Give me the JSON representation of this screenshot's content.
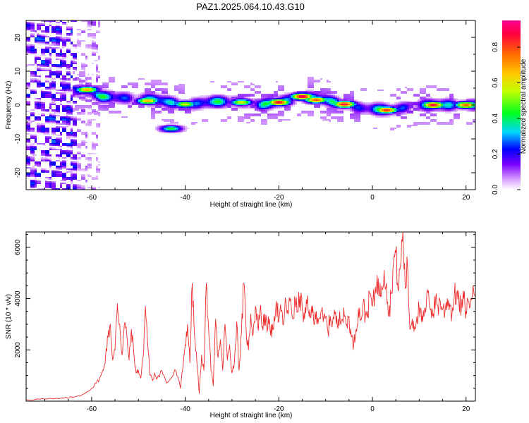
{
  "title": "PAZ1.2025.064.10.43.G10",
  "chart_data": [
    {
      "type": "heatmap",
      "xlabel": "Height of straight line (km)",
      "ylabel": "Frequency (Hz)",
      "xlim": [
        -74,
        22
      ],
      "ylim": [
        -25,
        25
      ],
      "x_ticks": [
        -60,
        -40,
        -20,
        0,
        20
      ],
      "y_ticks": [
        -20,
        -10,
        0,
        10,
        20
      ],
      "colorbar": {
        "label": "Normalized spectral amplitude",
        "range": [
          0,
          0.95
        ],
        "ticks": [
          0.0,
          0.2,
          0.4,
          0.6,
          0.8
        ]
      },
      "ridge_center_hz": [
        [
          -72,
          3
        ],
        [
          -66,
          3.5
        ],
        [
          -62,
          4.5
        ],
        [
          -58,
          2.5
        ],
        [
          -52,
          2
        ],
        [
          -46,
          1.5
        ],
        [
          -40,
          0
        ],
        [
          -34,
          1
        ],
        [
          -28,
          1
        ],
        [
          -24,
          0
        ],
        [
          -20,
          1
        ],
        [
          -14,
          2.5
        ],
        [
          -10,
          1.5
        ],
        [
          -6,
          0
        ],
        [
          -2,
          -1
        ],
        [
          4,
          -1.5
        ],
        [
          10,
          0
        ],
        [
          16,
          0
        ],
        [
          22,
          0
        ]
      ],
      "ridge_peaks": [
        [
          -61,
          4.5,
          0.7
        ],
        [
          -48,
          1.2,
          0.7
        ],
        [
          -40,
          0.2,
          0.6
        ],
        [
          -28,
          0.8,
          0.6
        ],
        [
          -20,
          0.8,
          0.9
        ],
        [
          -15,
          2.5,
          0.95
        ],
        [
          -12,
          1.5,
          0.8
        ],
        [
          -6,
          0.2,
          0.9
        ],
        [
          3,
          -1.5,
          0.85
        ],
        [
          13,
          0.0,
          0.9
        ],
        [
          20,
          0.0,
          0.8
        ]
      ],
      "side_blob": [
        -43,
        -7,
        0.45
      ]
    },
    {
      "type": "line",
      "xlabel": "Height of straight line (km)",
      "ylabel": "SNR (10 * v/v)",
      "xlim": [
        -74,
        22
      ],
      "ylim": [
        0,
        6600
      ],
      "x_ticks": [
        -60,
        -40,
        -20,
        0,
        20
      ],
      "y_ticks": [
        2000,
        4000,
        6000
      ],
      "color": "#ee2c2c",
      "series": [
        {
          "values": [
            [
              -74,
              60
            ],
            [
              -72,
              70
            ],
            [
              -70,
              80
            ],
            [
              -68,
              90
            ],
            [
              -66,
              110
            ],
            [
              -64,
              150
            ],
            [
              -62,
              250
            ],
            [
              -60,
              500
            ],
            [
              -59,
              700
            ],
            [
              -58,
              1000
            ],
            [
              -57.5,
              1200
            ],
            [
              -57,
              1800
            ],
            [
              -56.5,
              2500
            ],
            [
              -56,
              3000
            ],
            [
              -55.5,
              1600
            ],
            [
              -55,
              2000
            ],
            [
              -54.5,
              3800
            ],
            [
              -54,
              3000
            ],
            [
              -53.5,
              1800
            ],
            [
              -53,
              3000
            ],
            [
              -52.5,
              2600
            ],
            [
              -52,
              1600
            ],
            [
              -51.5,
              2800
            ],
            [
              -51,
              1900
            ],
            [
              -50.5,
              1100
            ],
            [
              -50,
              1200
            ],
            [
              -49.5,
              900
            ],
            [
              -49,
              1700
            ],
            [
              -48.5,
              3700
            ],
            [
              -48,
              2200
            ],
            [
              -47.5,
              1000
            ],
            [
              -47,
              800
            ],
            [
              -46.5,
              1100
            ],
            [
              -46,
              900
            ],
            [
              -45,
              1200
            ],
            [
              -44,
              700
            ],
            [
              -43,
              900
            ],
            [
              -42,
              1200
            ],
            [
              -41,
              500
            ],
            [
              -40,
              2200
            ],
            [
              -39.5,
              3000
            ],
            [
              -39,
              1500
            ],
            [
              -38.5,
              4600
            ],
            [
              -38,
              2500
            ],
            [
              -37.5,
              1500
            ],
            [
              -37,
              300
            ],
            [
              -36.5,
              1800
            ],
            [
              -36,
              1200
            ],
            [
              -35.5,
              4600
            ],
            [
              -35,
              2800
            ],
            [
              -34.5,
              1200
            ],
            [
              -34,
              600
            ],
            [
              -33.5,
              3200
            ],
            [
              -33,
              1700
            ],
            [
              -32.5,
              2400
            ],
            [
              -32,
              1200
            ],
            [
              -31.5,
              3000
            ],
            [
              -31,
              1600
            ],
            [
              -30.5,
              2200
            ],
            [
              -30,
              1100
            ],
            [
              -29.5,
              1500
            ],
            [
              -29,
              3100
            ],
            [
              -28.5,
              1200
            ],
            [
              -28,
              2600
            ],
            [
              -27.5,
              4600
            ],
            [
              -27,
              2800
            ],
            [
              -26.5,
              2000
            ],
            [
              -26,
              3400
            ],
            [
              -25.5,
              2600
            ],
            [
              -25,
              3700
            ],
            [
              -24.5,
              2900
            ],
            [
              -24,
              3600
            ],
            [
              -23.5,
              2900
            ],
            [
              -23,
              3400
            ],
            [
              -22.5,
              2700
            ],
            [
              -22,
              3200
            ],
            [
              -21.5,
              2500
            ],
            [
              -21,
              3300
            ],
            [
              -20.5,
              3900
            ],
            [
              -20,
              3100
            ],
            [
              -19.5,
              3500
            ],
            [
              -19,
              3000
            ],
            [
              -18.5,
              3900
            ],
            [
              -18,
              3400
            ],
            [
              -17.5,
              4000
            ],
            [
              -17,
              3200
            ],
            [
              -16.5,
              3900
            ],
            [
              -16,
              3500
            ],
            [
              -15.5,
              4100
            ],
            [
              -15,
              3600
            ],
            [
              -14.5,
              3200
            ],
            [
              -14,
              3800
            ],
            [
              -13.5,
              3300
            ],
            [
              -13,
              3700
            ],
            [
              -12.5,
              3000
            ],
            [
              -12,
              3500
            ],
            [
              -11.5,
              3200
            ],
            [
              -11,
              3500
            ],
            [
              -10.5,
              3100
            ],
            [
              -10,
              3300
            ],
            [
              -9.5,
              2700
            ],
            [
              -9,
              3300
            ],
            [
              -8.5,
              3100
            ],
            [
              -8,
              3400
            ],
            [
              -7.5,
              2900
            ],
            [
              -7,
              3500
            ],
            [
              -6.5,
              3200
            ],
            [
              -6,
              3300
            ],
            [
              -5.5,
              3000
            ],
            [
              -5,
              3300
            ],
            [
              -4.5,
              2500
            ],
            [
              -4,
              2200
            ],
            [
              -3.5,
              2800
            ],
            [
              -3,
              3600
            ],
            [
              -2.5,
              3200
            ],
            [
              -2,
              3800
            ],
            [
              -1.5,
              3300
            ],
            [
              -1,
              3500
            ],
            [
              -0.5,
              4200
            ],
            [
              0,
              3700
            ],
            [
              0.5,
              4100
            ],
            [
              1,
              4900
            ],
            [
              1.5,
              4100
            ],
            [
              2,
              4500
            ],
            [
              2.5,
              5100
            ],
            [
              3,
              4600
            ],
            [
              3.5,
              3300
            ],
            [
              4,
              4200
            ],
            [
              4.5,
              5400
            ],
            [
              5,
              5800
            ],
            [
              5.5,
              4300
            ],
            [
              6,
              5300
            ],
            [
              6.5,
              6600
            ],
            [
              7,
              4400
            ],
            [
              7.5,
              5300
            ],
            [
              8,
              2800
            ],
            [
              8.5,
              3200
            ],
            [
              9,
              2900
            ],
            [
              9.5,
              3300
            ],
            [
              10,
              3600
            ],
            [
              10.5,
              3100
            ],
            [
              11,
              3300
            ],
            [
              11.5,
              3700
            ],
            [
              12,
              4300
            ],
            [
              12.5,
              3600
            ],
            [
              13,
              3400
            ],
            [
              13.5,
              4000
            ],
            [
              14,
              3700
            ],
            [
              14.5,
              3900
            ],
            [
              15,
              3600
            ],
            [
              15.5,
              3500
            ],
            [
              16,
              4000
            ],
            [
              16.5,
              3800
            ],
            [
              17,
              3400
            ],
            [
              17.5,
              4100
            ],
            [
              18,
              4200
            ],
            [
              18.5,
              3800
            ],
            [
              19,
              3600
            ],
            [
              19.5,
              4000
            ],
            [
              20,
              3500
            ],
            [
              20.5,
              3900
            ],
            [
              21,
              4000
            ],
            [
              22,
              4100
            ]
          ]
        }
      ]
    }
  ]
}
